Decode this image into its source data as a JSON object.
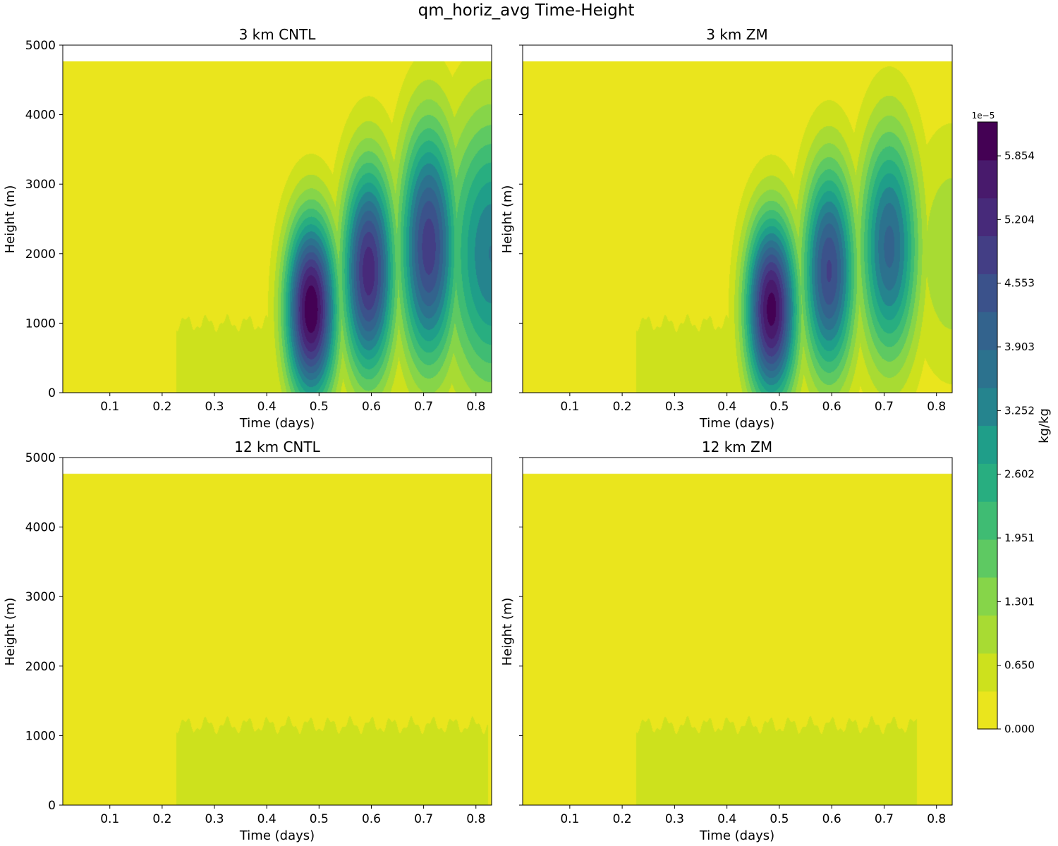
{
  "figure": {
    "suptitle": "qm_horiz_avg Time-Height"
  },
  "colors": {
    "background_fill": "#eae51d",
    "colormap": [
      "#eae51d",
      "#cde11d",
      "#a8db33",
      "#86d549",
      "#5ec962",
      "#3fbc73",
      "#28ae80",
      "#1f9e89",
      "#25848e",
      "#2c728e",
      "#33638d",
      "#3b528b",
      "#433e85",
      "#472a7a",
      "#481a6c",
      "#440154"
    ]
  },
  "colorbar": {
    "label": "kg/kg",
    "scale": "1e−5",
    "ticks": [
      "0.000",
      "0.650",
      "1.301",
      "1.951",
      "2.602",
      "3.252",
      "3.903",
      "4.553",
      "5.204",
      "5.854"
    ],
    "max_level": 6.2
  },
  "chart_data": [
    {
      "type": "contourf",
      "title": "3 km CNTL",
      "xlabel": "Time (days)",
      "ylabel": "Height (m)",
      "xlim": [
        0.01,
        0.83
      ],
      "ylim": [
        0,
        5000
      ],
      "data_top_m": 4770,
      "xticks": [
        "0.1",
        "0.2",
        "0.3",
        "0.4",
        "0.5",
        "0.6",
        "0.7",
        "0.8"
      ],
      "yticks": [
        "0",
        "1000",
        "2000",
        "3000",
        "4000",
        "5000"
      ],
      "features": [
        {
          "kind": "shallow",
          "t0": 0.22,
          "t1": 0.45,
          "z_top": 1000,
          "peak_e5": 0.55
        },
        {
          "kind": "pulse",
          "t": 0.485,
          "z": 1200,
          "dt": 0.035,
          "dz": 950,
          "peak_e5": 6.2
        },
        {
          "kind": "pulse",
          "t": 0.595,
          "z": 1750,
          "dt": 0.036,
          "dz": 1100,
          "peak_e5": 5.3
        },
        {
          "kind": "pulse",
          "t": 0.71,
          "z": 2100,
          "dt": 0.04,
          "dz": 1250,
          "peak_e5": 4.9
        },
        {
          "kind": "pulse",
          "t": 0.83,
          "z": 2000,
          "dt": 0.065,
          "dz": 1450,
          "peak_e5": 3.5
        }
      ]
    },
    {
      "type": "contourf",
      "title": "3 km ZM",
      "xlabel": "Time (days)",
      "ylabel": "Height (m)",
      "xlim": [
        0.01,
        0.83
      ],
      "ylim": [
        0,
        5000
      ],
      "data_top_m": 4770,
      "xticks": [
        "0.1",
        "0.2",
        "0.3",
        "0.4",
        "0.5",
        "0.6",
        "0.7",
        "0.8"
      ],
      "yticks": [],
      "features": [
        {
          "kind": "shallow",
          "t0": 0.22,
          "t1": 0.45,
          "z_top": 1000,
          "peak_e5": 0.55
        },
        {
          "kind": "pulse",
          "t": 0.485,
          "z": 1200,
          "dt": 0.035,
          "dz": 950,
          "peak_e5": 6.0
        },
        {
          "kind": "pulse",
          "t": 0.595,
          "z": 1750,
          "dt": 0.036,
          "dz": 1100,
          "peak_e5": 4.7
        },
        {
          "kind": "pulse",
          "t": 0.71,
          "z": 2100,
          "dt": 0.04,
          "dz": 1200,
          "peak_e5": 4.0
        },
        {
          "kind": "pulse",
          "t": 0.83,
          "z": 2000,
          "dt": 0.06,
          "dz": 1300,
          "peak_e5": 1.1
        }
      ]
    },
    {
      "type": "contourf",
      "title": "12 km CNTL",
      "xlabel": "Time (days)",
      "ylabel": "Height (m)",
      "xlim": [
        0.01,
        0.83
      ],
      "ylim": [
        0,
        5000
      ],
      "data_top_m": 4770,
      "xticks": [
        "0.1",
        "0.2",
        "0.3",
        "0.4",
        "0.5",
        "0.6",
        "0.7",
        "0.8"
      ],
      "yticks": [
        "0",
        "1000",
        "2000",
        "3000",
        "4000",
        "5000"
      ],
      "features": [
        {
          "kind": "shallow",
          "t0": 0.22,
          "t1": 0.83,
          "z_top": 1150,
          "peak_e5": 0.55
        }
      ]
    },
    {
      "type": "contourf",
      "title": "12 km ZM",
      "xlabel": "Time (days)",
      "ylabel": "Height (m)",
      "xlim": [
        0.01,
        0.83
      ],
      "ylim": [
        0,
        5000
      ],
      "data_top_m": 4770,
      "xticks": [
        "0.1",
        "0.2",
        "0.3",
        "0.4",
        "0.5",
        "0.6",
        "0.7",
        "0.8"
      ],
      "yticks": [],
      "features": [
        {
          "kind": "shallow",
          "t0": 0.22,
          "t1": 0.77,
          "z_top": 1150,
          "peak_e5": 0.55
        }
      ]
    }
  ]
}
